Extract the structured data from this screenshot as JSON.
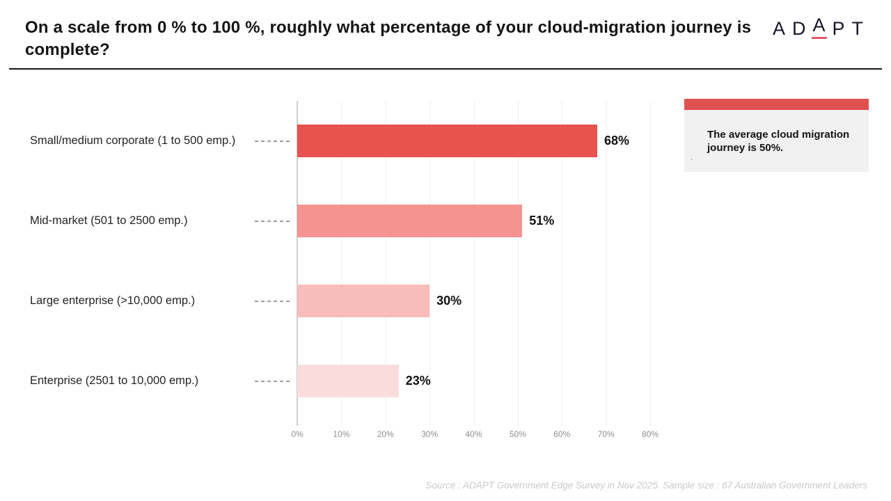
{
  "header": {
    "title": "On a scale from 0 % to 100 %, roughly what percentage of your cloud-migration journey is complete?",
    "logo_letters": [
      "A",
      "D",
      "A",
      "P",
      "T"
    ],
    "logo_accent_color": "#e15964"
  },
  "chart_data": {
    "type": "bar",
    "orientation": "horizontal",
    "title": "On a scale from 0 % to 100 %, roughly what percentage of your cloud-migration journey is complete?",
    "categories": [
      "Small/medium corporate (1 to 500 emp.)",
      "Mid-market (501 to 2500 emp.)",
      "Large enterprise (>10,000 emp.)",
      "Enterprise (2501 to 10,000 emp.)"
    ],
    "values": [
      68,
      51,
      30,
      23
    ],
    "value_labels": [
      "68%",
      "51%",
      "30%",
      "23%"
    ],
    "bar_colors": [
      "#e8534f",
      "#f4938f",
      "#f8bcba",
      "#fbdcdd"
    ],
    "xlim": [
      0,
      80
    ],
    "x_ticks": [
      "0%",
      "10%",
      "20%",
      "30%",
      "40%",
      "50%",
      "60%",
      "70%",
      "80%"
    ],
    "grid": true,
    "legend": "none"
  },
  "annotation": {
    "text": "The average cloud migration journey is 50%.",
    "accent_color": "#e0514f",
    "mark": "."
  },
  "footer": {
    "source": "Source : ADAPT Government Edge Survey in Nov 2025. Sample size : 67 Australian Government Leaders"
  }
}
